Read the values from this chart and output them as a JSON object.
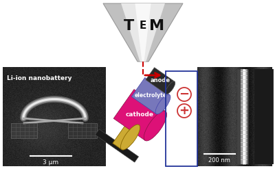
{
  "bg_color": "#ffffff",
  "title_letters": [
    "T",
    "E",
    "M"
  ],
  "title_font_sizes": [
    16,
    11,
    16
  ],
  "battery_anode_color": "#2a2a2a",
  "battery_electrolyte_color": "#7777bb",
  "battery_cathode_color": "#dd1177",
  "battery_tip_color_gold": "#ccaa33",
  "battery_tip_color_dark": "#1a1a1a",
  "arrow_color": "#cc0000",
  "label_anode": "anode",
  "label_electrolyte": "electrolyte",
  "label_cathode": "cathode",
  "minus_symbol": "−",
  "plus_symbol": "+",
  "box_color": "#223399",
  "scalebar1_label": "3 μm",
  "scalebar2_label": "200 nm",
  "nanobattery_label": "Li-ion nanobattery",
  "cone_gray": "#c0c0c0",
  "cone_light": "#e8e8e8",
  "cone_white": "#f8f8f8"
}
